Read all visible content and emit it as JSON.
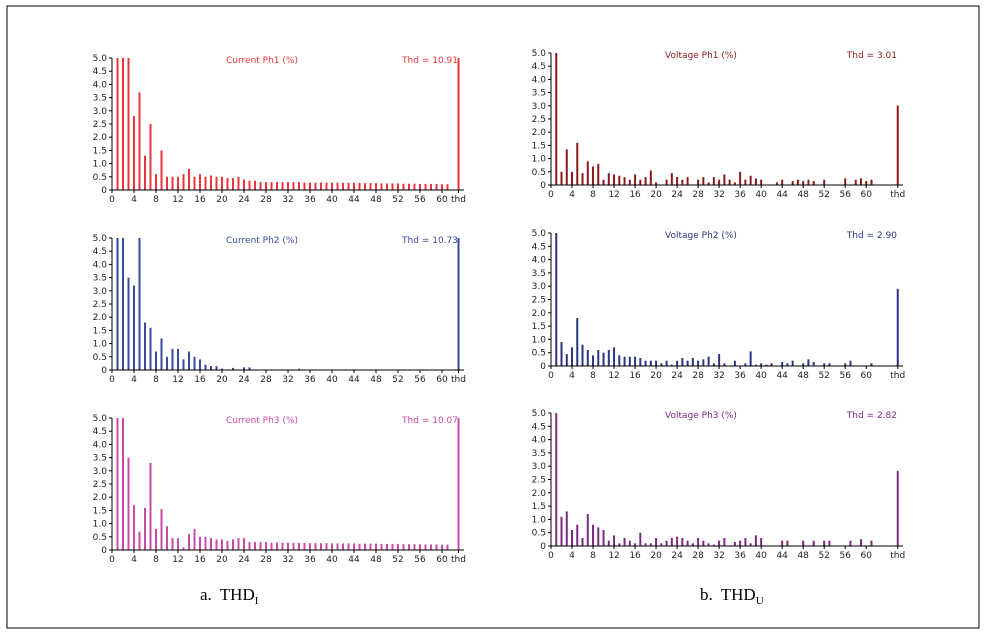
{
  "chart_data": [
    {
      "type": "bar",
      "title": "Current Ph1 (%)",
      "color": "#e8343a",
      "thd": {
        "value": 10.91,
        "label": "Thd = 10.91"
      },
      "xlim": [
        0,
        64
      ],
      "ylim": [
        0,
        5
      ],
      "xticks": [
        0,
        4,
        8,
        12,
        16,
        20,
        24,
        28,
        32,
        36,
        40,
        44,
        48,
        52,
        56,
        60,
        {
          "value": 63,
          "label": "thd"
        }
      ],
      "yticks": [
        0,
        0.5,
        {
          "value": 1,
          "label": "1.0"
        },
        1.5,
        {
          "value": 2,
          "label": "2.0"
        },
        2.5,
        {
          "value": 3,
          "label": "3.0"
        },
        3.5,
        {
          "value": 4,
          "label": "4.0"
        },
        4.5,
        {
          "value": 5,
          "label": "5.0"
        }
      ],
      "x": [
        1,
        2,
        3,
        4,
        5,
        6,
        7,
        8,
        9,
        10,
        11,
        12,
        13,
        14,
        15,
        16,
        17,
        18,
        19,
        20,
        21,
        22,
        23,
        24,
        25,
        26,
        27,
        28,
        29,
        30,
        31,
        32,
        33,
        34,
        35,
        36,
        37,
        38,
        39,
        40,
        41,
        42,
        43,
        44,
        45,
        46,
        47,
        48,
        49,
        50,
        51,
        52,
        53,
        54,
        55,
        56,
        57,
        58,
        59,
        60,
        61
      ],
      "values": [
        5,
        5,
        5,
        2.8,
        3.7,
        1.3,
        2.5,
        0.6,
        1.5,
        0.5,
        0.5,
        0.5,
        0.6,
        0.8,
        0.5,
        0.6,
        0.5,
        0.55,
        0.5,
        0.5,
        0.45,
        0.45,
        0.5,
        0.4,
        0.35,
        0.35,
        0.3,
        0.3,
        0.3,
        0.3,
        0.3,
        0.3,
        0.3,
        0.3,
        0.28,
        0.28,
        0.28,
        0.28,
        0.28,
        0.28,
        0.28,
        0.27,
        0.27,
        0.27,
        0.27,
        0.26,
        0.26,
        0.26,
        0.25,
        0.25,
        0.25,
        0.25,
        0.24,
        0.24,
        0.24,
        0.23,
        0.23,
        0.23,
        0.23,
        0.22,
        0.22
      ]
    },
    {
      "type": "bar",
      "title": "Voltage Ph1 (%)",
      "color": "#8b1a1a",
      "thd": {
        "value": 3.01,
        "label": "Thd = 3.01"
      },
      "xlim": [
        0,
        67
      ],
      "ylim": [
        0,
        5
      ],
      "xticks": [
        0,
        4,
        8,
        12,
        16,
        20,
        24,
        28,
        32,
        36,
        40,
        44,
        48,
        52,
        56,
        60,
        {
          "value": 66,
          "label": "thd"
        }
      ],
      "yticks": [
        0,
        0.5,
        {
          "value": 1,
          "label": "1.0"
        },
        1.5,
        {
          "value": 2,
          "label": "2.0"
        },
        2.5,
        {
          "value": 3,
          "label": "3.0"
        },
        3.5,
        {
          "value": 4,
          "label": "4.0"
        },
        4.5,
        {
          "value": 5,
          "label": "5.0"
        }
      ],
      "x": [
        1,
        2,
        3,
        4,
        5,
        6,
        7,
        8,
        9,
        10,
        11,
        12,
        13,
        14,
        15,
        16,
        17,
        18,
        19,
        20,
        21,
        22,
        23,
        24,
        25,
        26,
        27,
        28,
        29,
        30,
        31,
        32,
        33,
        34,
        35,
        36,
        37,
        38,
        39,
        40,
        41,
        42,
        43,
        44,
        45,
        46,
        47,
        48,
        49,
        50,
        51,
        52,
        53,
        54,
        55,
        56,
        57,
        58,
        59,
        60,
        61
      ],
      "values": [
        5,
        0.5,
        1.35,
        0.5,
        1.6,
        0.45,
        0.9,
        0.7,
        0.8,
        0.2,
        0.45,
        0.4,
        0.35,
        0.3,
        0.2,
        0.4,
        0.2,
        0.3,
        0.55,
        0.1,
        0,
        0.2,
        0.45,
        0.3,
        0.2,
        0.3,
        0,
        0.2,
        0.3,
        0.1,
        0.3,
        0.2,
        0.4,
        0.2,
        0.1,
        0.5,
        0.2,
        0.35,
        0.25,
        0.2,
        0,
        0,
        0.1,
        0.2,
        0,
        0.15,
        0.2,
        0.15,
        0.2,
        0.15,
        0,
        0.2,
        0,
        0,
        0,
        0.25,
        0,
        0.2,
        0.25,
        0.15,
        0.2
      ]
    },
    {
      "type": "bar",
      "title": "Current Ph2 (%)",
      "color": "#3a4a9c",
      "thd": {
        "value": 10.73,
        "label": "Thd = 10.73"
      },
      "xlim": [
        0,
        64
      ],
      "ylim": [
        0,
        5
      ],
      "xticks": [
        0,
        4,
        8,
        12,
        16,
        20,
        24,
        28,
        32,
        36,
        40,
        44,
        48,
        52,
        56,
        60,
        {
          "value": 63,
          "label": "thd"
        }
      ],
      "yticks": [
        0,
        0.5,
        {
          "value": 1,
          "label": "1.0"
        },
        1.5,
        {
          "value": 2,
          "label": "2.0"
        },
        2.5,
        {
          "value": 3,
          "label": "3.0"
        },
        3.5,
        {
          "value": 4,
          "label": "4.0"
        },
        4.5,
        {
          "value": 5,
          "label": "5.0"
        }
      ],
      "x": [
        1,
        2,
        3,
        4,
        5,
        6,
        7,
        8,
        9,
        10,
        11,
        12,
        13,
        14,
        15,
        16,
        17,
        18,
        19,
        20,
        21,
        22,
        23,
        24,
        25,
        26,
        27,
        28,
        29,
        30,
        31,
        32,
        33,
        34,
        35,
        36,
        37,
        38,
        39,
        40,
        41,
        42,
        43,
        44,
        45,
        46,
        47,
        48,
        49,
        50,
        51,
        52,
        53,
        54,
        55,
        56,
        57,
        58,
        59,
        60,
        61
      ],
      "values": [
        5,
        5,
        3.5,
        3.2,
        5,
        1.8,
        1.6,
        0.7,
        1.2,
        0.5,
        0.8,
        0.8,
        0.4,
        0.7,
        0.5,
        0.4,
        0.2,
        0.15,
        0.15,
        0.05,
        0,
        0.08,
        0,
        0.1,
        0.1,
        0,
        0,
        0,
        0,
        0,
        0,
        0,
        0,
        0.05,
        0,
        0,
        0,
        0,
        0,
        0,
        0,
        0,
        0,
        0,
        0,
        0,
        0,
        0,
        0,
        0,
        0,
        0,
        0,
        0,
        0,
        0,
        0,
        0,
        0,
        0,
        0
      ]
    },
    {
      "type": "bar",
      "title": "Voltage Ph2 (%)",
      "color": "#2a3580",
      "thd": {
        "value": 2.9,
        "label": "Thd = 2.90"
      },
      "xlim": [
        0,
        67
      ],
      "ylim": [
        0,
        5
      ],
      "xticks": [
        0,
        4,
        8,
        12,
        16,
        20,
        24,
        28,
        32,
        36,
        40,
        44,
        48,
        52,
        56,
        60,
        {
          "value": 66,
          "label": "thd"
        }
      ],
      "yticks": [
        0,
        0.5,
        {
          "value": 1,
          "label": "1.0"
        },
        1.5,
        {
          "value": 2,
          "label": "2.0"
        },
        2.5,
        {
          "value": 3,
          "label": "3.0"
        },
        3.5,
        {
          "value": 4,
          "label": "4.0"
        },
        4.5,
        {
          "value": 5,
          "label": "5.0"
        }
      ],
      "x": [
        1,
        2,
        3,
        4,
        5,
        6,
        7,
        8,
        9,
        10,
        11,
        12,
        13,
        14,
        15,
        16,
        17,
        18,
        19,
        20,
        21,
        22,
        23,
        24,
        25,
        26,
        27,
        28,
        29,
        30,
        31,
        32,
        33,
        34,
        35,
        36,
        37,
        38,
        39,
        40,
        41,
        42,
        43,
        44,
        45,
        46,
        47,
        48,
        49,
        50,
        51,
        52,
        53,
        54,
        55,
        56,
        57,
        58,
        59,
        60,
        61
      ],
      "values": [
        5,
        0.9,
        0.45,
        0.7,
        1.8,
        0.8,
        0.6,
        0.4,
        0.6,
        0.5,
        0.6,
        0.7,
        0.4,
        0.35,
        0.35,
        0.35,
        0.3,
        0.2,
        0.2,
        0.2,
        0.1,
        0.2,
        0.05,
        0.2,
        0.3,
        0.2,
        0.3,
        0.2,
        0.25,
        0.35,
        0.1,
        0.45,
        0.1,
        0,
        0.2,
        0,
        0.1,
        0.55,
        0.05,
        0.1,
        0.05,
        0.1,
        0,
        0.15,
        0.1,
        0.2,
        0,
        0.1,
        0.25,
        0.15,
        0,
        0.1,
        0.1,
        0,
        0,
        0.1,
        0.2,
        0,
        0,
        0,
        0.1
      ]
    },
    {
      "type": "bar",
      "title": "Current Ph3 (%)",
      "color": "#c84aa8",
      "thd": {
        "value": 10.07,
        "label": "Thd = 10.07"
      },
      "xlim": [
        0,
        64
      ],
      "ylim": [
        0,
        5
      ],
      "xticks": [
        0,
        4,
        8,
        12,
        16,
        20,
        24,
        28,
        32,
        36,
        40,
        44,
        48,
        52,
        56,
        60,
        {
          "value": 63,
          "label": "thd"
        }
      ],
      "yticks": [
        0,
        0.5,
        {
          "value": 1,
          "label": "1.0"
        },
        1.5,
        {
          "value": 2,
          "label": "2.0"
        },
        2.5,
        {
          "value": 3,
          "label": "3.0"
        },
        3.5,
        {
          "value": 4,
          "label": "4.0"
        },
        4.5,
        {
          "value": 5,
          "label": "5.0"
        }
      ],
      "x": [
        1,
        2,
        3,
        4,
        5,
        6,
        7,
        8,
        9,
        10,
        11,
        12,
        13,
        14,
        15,
        16,
        17,
        18,
        19,
        20,
        21,
        22,
        23,
        24,
        25,
        26,
        27,
        28,
        29,
        30,
        31,
        32,
        33,
        34,
        35,
        36,
        37,
        38,
        39,
        40,
        41,
        42,
        43,
        44,
        45,
        46,
        47,
        48,
        49,
        50,
        51,
        52,
        53,
        54,
        55,
        56,
        57,
        58,
        59,
        60,
        61
      ],
      "values": [
        5,
        5,
        3.5,
        1.7,
        0.7,
        1.6,
        3.3,
        0.8,
        1.55,
        0.9,
        0.45,
        0.45,
        0.1,
        0.6,
        0.8,
        0.5,
        0.5,
        0.45,
        0.4,
        0.4,
        0.35,
        0.4,
        0.45,
        0.45,
        0.3,
        0.3,
        0.3,
        0.3,
        0.28,
        0.28,
        0.28,
        0.28,
        0.27,
        0.27,
        0.27,
        0.26,
        0.26,
        0.26,
        0.26,
        0.25,
        0.25,
        0.25,
        0.25,
        0.25,
        0.24,
        0.24,
        0.24,
        0.24,
        0.23,
        0.23,
        0.23,
        0.23,
        0.22,
        0.22,
        0.22,
        0.22,
        0.21,
        0.21,
        0.21,
        0.2,
        0.2
      ]
    },
    {
      "type": "bar",
      "title": "Voltage Ph3 (%)",
      "color": "#7a2a80",
      "thd": {
        "value": 2.82,
        "label": "Thd = 2.82"
      },
      "xlim": [
        0,
        67
      ],
      "ylim": [
        0,
        5
      ],
      "xticks": [
        0,
        4,
        8,
        12,
        16,
        20,
        24,
        28,
        32,
        36,
        40,
        44,
        48,
        52,
        56,
        60,
        {
          "value": 66,
          "label": "thd"
        }
      ],
      "yticks": [
        0,
        0.5,
        {
          "value": 1,
          "label": "1.0"
        },
        1.5,
        {
          "value": 2,
          "label": "2.0"
        },
        2.5,
        {
          "value": 3,
          "label": "3.0"
        },
        3.5,
        {
          "value": 4,
          "label": "4.0"
        },
        4.5,
        {
          "value": 5,
          "label": "5.0"
        }
      ],
      "x": [
        1,
        2,
        3,
        4,
        5,
        6,
        7,
        8,
        9,
        10,
        11,
        12,
        13,
        14,
        15,
        16,
        17,
        18,
        19,
        20,
        21,
        22,
        23,
        24,
        25,
        26,
        27,
        28,
        29,
        30,
        31,
        32,
        33,
        34,
        35,
        36,
        37,
        38,
        39,
        40,
        41,
        42,
        43,
        44,
        45,
        46,
        47,
        48,
        49,
        50,
        51,
        52,
        53,
        54,
        55,
        56,
        57,
        58,
        59,
        60,
        61
      ],
      "values": [
        5,
        1.1,
        1.3,
        0.6,
        0.8,
        0.3,
        1.2,
        0.8,
        0.7,
        0.6,
        0.2,
        0.4,
        0.1,
        0.3,
        0.2,
        0.1,
        0.5,
        0.1,
        0.1,
        0.3,
        0.1,
        0.2,
        0.3,
        0.35,
        0.3,
        0.2,
        0.1,
        0.3,
        0.2,
        0.1,
        0.05,
        0.2,
        0.3,
        0,
        0.15,
        0.2,
        0.3,
        0.1,
        0.4,
        0.3,
        0,
        0,
        0,
        0.2,
        0.2,
        0,
        0,
        0.2,
        0,
        0.2,
        0,
        0.2,
        0.2,
        0,
        0,
        0,
        0.2,
        0,
        0.25,
        0,
        0.2
      ]
    }
  ],
  "captions": [
    {
      "label": "a.",
      "text": "THD",
      "subscript": "I"
    },
    {
      "label": "b.",
      "text": "THD",
      "subscript": "U"
    }
  ]
}
